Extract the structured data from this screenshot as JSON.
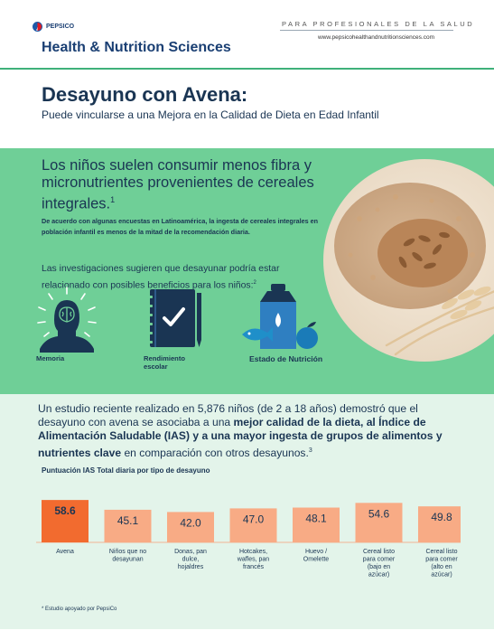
{
  "header": {
    "logo_text": "PEPSICO",
    "division": "Health & Nutrition Sciences",
    "audience": "PARA PROFESIONALES DE LA SALUD",
    "website": "www.pepsicohealthandnutritionsciences.com"
  },
  "hero": {
    "title": "Desayuno con Avena:",
    "subtitle": "Puede vincularse a una Mejora en la Calidad de Dieta en Edad Infantil"
  },
  "panel": {
    "heading": "Los niños suelen consumir menos fibra y micronutrientes provenientes de cereales integrales.",
    "heading_ref": "1",
    "bold_text": "De acuerdo con algunas encuestas en Latinoamérica, la ingesta de cereales integrales en población infantil es menos de la mitad de la recomendación diaria.",
    "research_text": "Las investigaciones sugieren que desayunar podría estar relacionado con posibles beneficios para los niños:",
    "research_ref": "2",
    "benefits": [
      {
        "label": "Memoria",
        "icon": "head-brain-icon"
      },
      {
        "label": "Rendimiento escolar",
        "icon": "notebook-check-icon"
      },
      {
        "label": "Estado de Nutrición",
        "icon": "food-group-icon"
      }
    ]
  },
  "study": {
    "part1": "Un estudio reciente realizado en 5,876 niños (de 2 a 18 años) demostró que el desayuno con avena se asociaba a una ",
    "bold1": "mejor calidad de la dieta, al Índice de Alimentación Saludable (IAS) y a una mayor ingesta de grupos de alimentos y nutrientes clave",
    "part2": " en comparación con otros desayunos.",
    "ref": "3"
  },
  "chart_data": {
    "type": "bar",
    "title": "Puntuación IAS Total diaria por tipo de desayuno",
    "categories": [
      "Avena",
      "Niños que no desayunan",
      "Donas, pan dulce, hojaldres",
      "Hotcakes, wafles, pan francés",
      "Huevo / Omelette",
      "Cereal listo para comer (bajo en azúcar)",
      "Cereal listo para comer (alto en azúcar)"
    ],
    "values": [
      58.6,
      45.1,
      42.0,
      47.0,
      48.1,
      54.6,
      49.8
    ],
    "value_labels": [
      "58.6",
      "45.1",
      "42.0",
      "47.0",
      "48.1",
      "54.6",
      "49.8"
    ],
    "ylim": [
      0,
      75
    ],
    "highlight_color": "#f26b2f",
    "bar_color": "#f8ab85",
    "xlabel": "",
    "ylabel": ""
  },
  "footnote": "* Estudio apoyado por PepsiCo"
}
